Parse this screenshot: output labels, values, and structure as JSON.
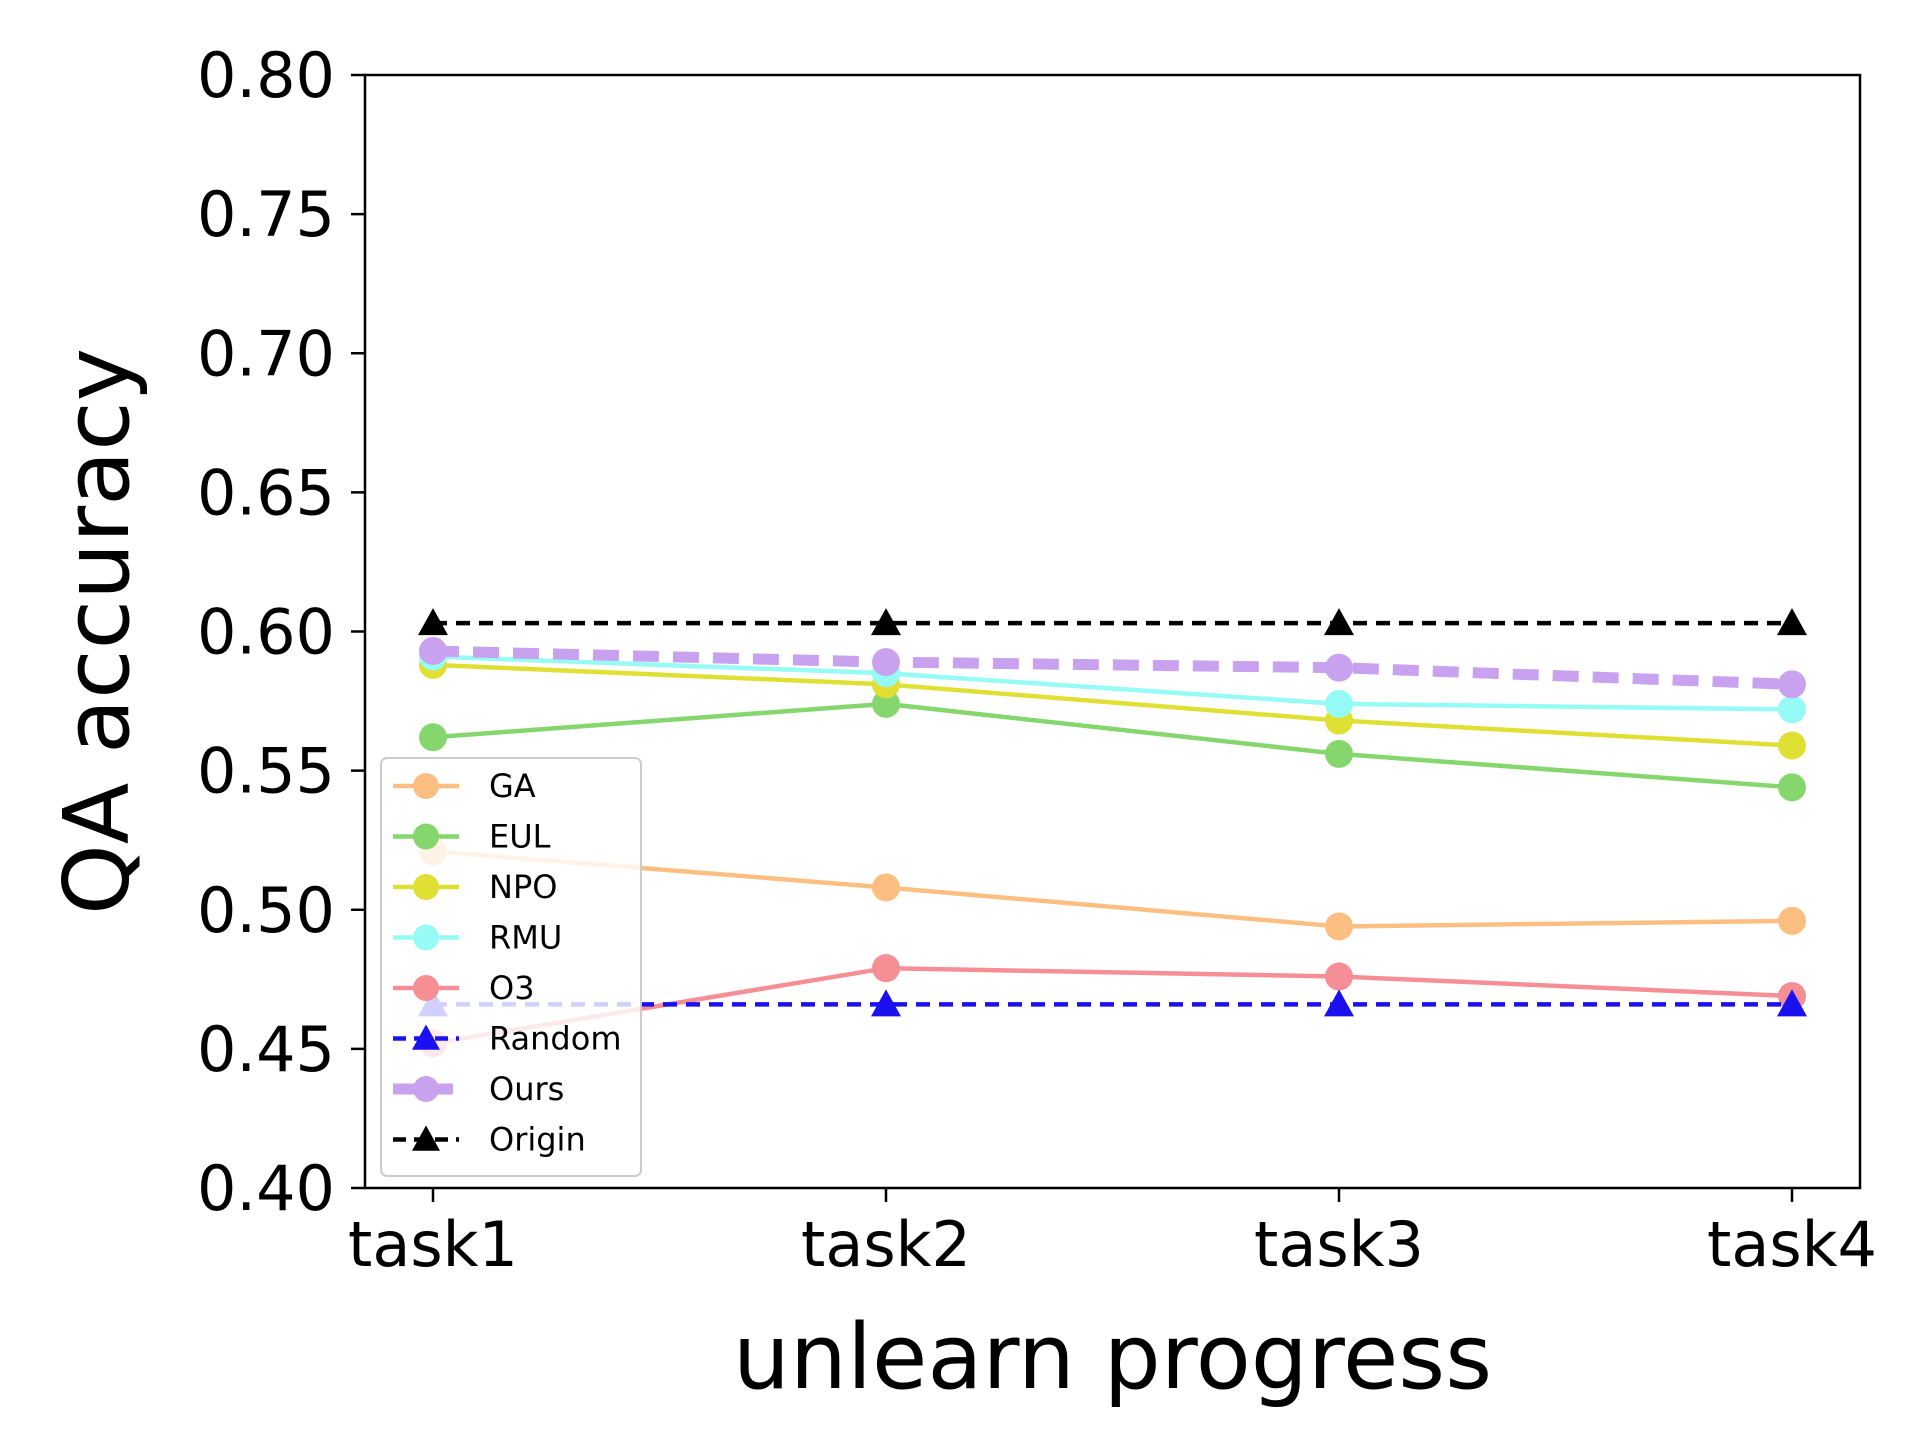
{
  "chart_data": {
    "type": "line",
    "title": "",
    "xlabel": "unlearn progress",
    "ylabel": "QA accuracy",
    "categories": [
      "task1",
      "task2",
      "task3",
      "task4"
    ],
    "ylim": [
      0.4,
      0.8
    ],
    "yticks": [
      "0.40",
      "0.45",
      "0.50",
      "0.55",
      "0.60",
      "0.65",
      "0.70",
      "0.75",
      "0.80"
    ],
    "grid": false,
    "legend_position": "lower-left",
    "series": [
      {
        "name": "GA",
        "values": [
          0.521,
          0.508,
          0.494,
          0.496
        ],
        "color": "#fcbf81",
        "marker": "circle",
        "dash": "solid"
      },
      {
        "name": "EUL",
        "values": [
          0.562,
          0.574,
          0.556,
          0.544
        ],
        "color": "#86d66e",
        "marker": "circle",
        "dash": "solid"
      },
      {
        "name": "NPO",
        "values": [
          0.588,
          0.581,
          0.568,
          0.559
        ],
        "color": "#dfe033",
        "marker": "circle",
        "dash": "solid"
      },
      {
        "name": "RMU",
        "values": [
          0.591,
          0.585,
          0.574,
          0.572
        ],
        "color": "#96fbf5",
        "marker": "circle",
        "dash": "solid"
      },
      {
        "name": "O3",
        "values": [
          0.452,
          0.479,
          0.476,
          0.469
        ],
        "color": "#f58f95",
        "marker": "circle",
        "dash": "solid"
      },
      {
        "name": "Random",
        "values": [
          0.466,
          0.466,
          0.466,
          0.466
        ],
        "color": "#1a10f0",
        "marker": "triangle",
        "dash": "dashed"
      },
      {
        "name": "Ours",
        "values": [
          0.593,
          0.589,
          0.587,
          0.581
        ],
        "color": "#c8a2ee",
        "marker": "circle",
        "dash": "dashed-thick"
      },
      {
        "name": "Origin",
        "values": [
          0.603,
          0.603,
          0.603,
          0.603
        ],
        "color": "#000000",
        "marker": "triangle",
        "dash": "dashed"
      }
    ]
  }
}
